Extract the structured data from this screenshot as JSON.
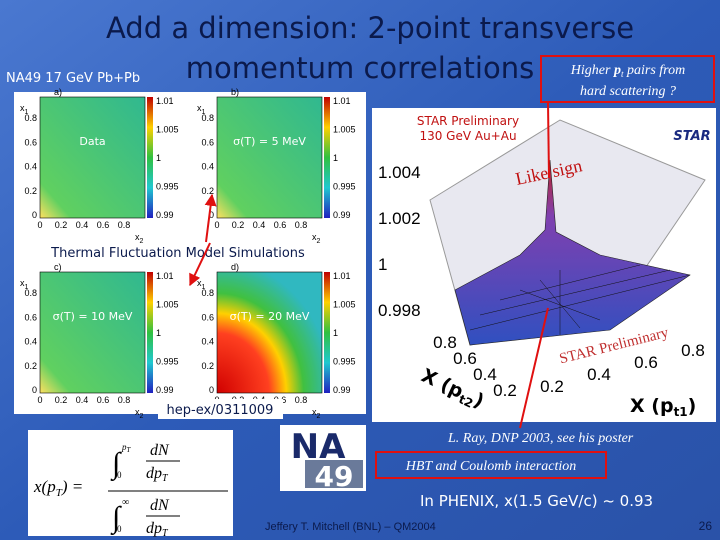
{
  "title": {
    "line1": "Add a dimension: 2-point transverse",
    "line2": "momentum correlations"
  },
  "system_label": "NA49 17 GeV Pb+Pb",
  "callout": {
    "prefix": "Higher ",
    "p": "p",
    "sub": "t",
    "suffix": " pairs from",
    "line2": "hard scattering ?"
  },
  "panels": [
    {
      "letter": "a)",
      "label": "Data"
    },
    {
      "letter": "b)",
      "label": "σ(T) = 5 MeV"
    },
    {
      "letter": "c)",
      "label": "σ(T) = 10 MeV"
    },
    {
      "letter": "d)",
      "label": "σ(T) = 20 MeV"
    }
  ],
  "panel_axes": {
    "x_label": {
      "base": "x",
      "sub": "2"
    },
    "y_label": {
      "base": "x",
      "sub": "1"
    },
    "x_ticks": [
      "0",
      "0.2",
      "0.4",
      "0.6",
      "0.8"
    ],
    "y_ticks": [
      "0",
      "0.2",
      "0.4",
      "0.6",
      "0.8"
    ],
    "scale_ticks": [
      "1.01",
      "1.005",
      "1",
      "0.995",
      "0.99"
    ]
  },
  "simulations_label": "Thermal Fluctuation Model Simulations",
  "reference": "hep-ex/0311009",
  "star_plot": {
    "title": "STAR Preliminary",
    "subtitle": "130 GeV Au+Au",
    "logo": "STAR",
    "annotation": "Like sign",
    "watermark": "STAR Preliminary",
    "z_ticks": [
      "1.004",
      "1.002",
      "1",
      "0.998"
    ],
    "x1_ticks": [
      "0.2",
      "0.4",
      "0.6",
      "0.8"
    ],
    "x2_ticks": [
      "0.8",
      "0.6",
      "0.4",
      "0.2"
    ],
    "x1_label": {
      "base": "X (p",
      "sub": "t1",
      "close": ")"
    },
    "x2_label": {
      "base": "X (p",
      "sub": "t2",
      "close": ")"
    }
  },
  "formula": {
    "lhs": "x(p",
    "lhs_sub": "T",
    "lhs_close": ") =",
    "integral": "∫",
    "num_upper": "p",
    "num_upper_sub": "T",
    "num_lower": "0",
    "den_upper": "∞",
    "den_lower": "0",
    "dN": "dN",
    "dp": "dp",
    "dp_sub": "T"
  },
  "logo": {
    "top": "NA",
    "bottom": "49"
  },
  "credit": "L. Ray, DNP 2003, see his poster",
  "hbt_box": "HBT and Coulomb interaction",
  "phenix_result": "In PHENIX, x(1.5 GeV/c) ~ 0.93",
  "footer": {
    "author": "Jeffery T. Mitchell (BNL) – QM2004",
    "page": "26"
  }
}
